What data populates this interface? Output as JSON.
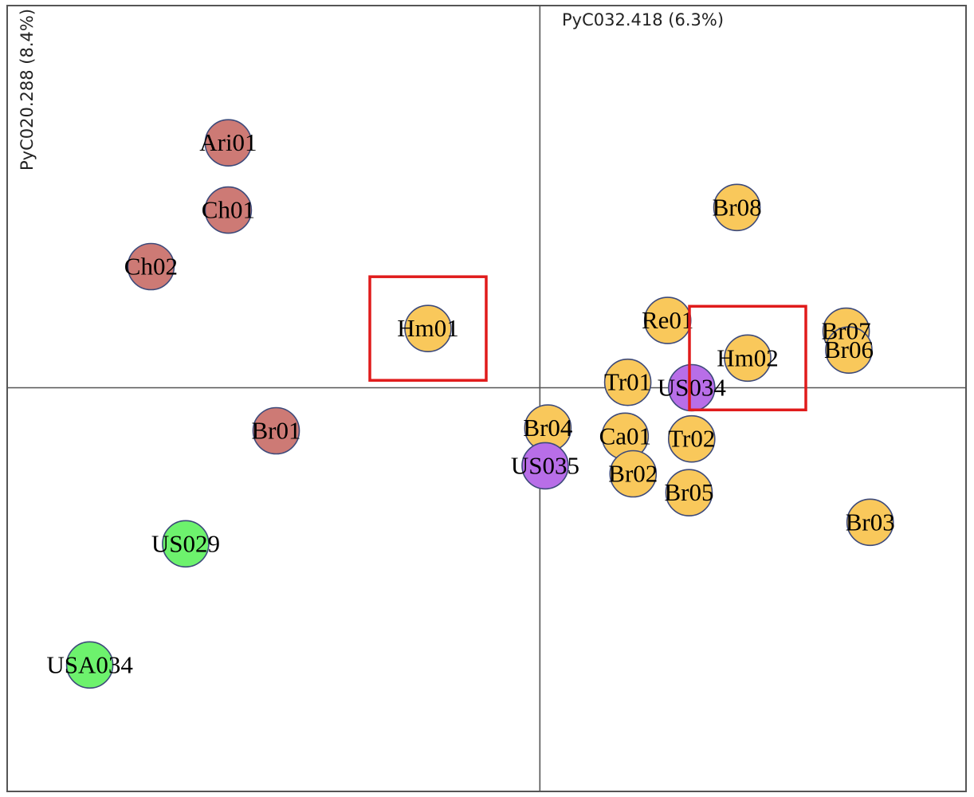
{
  "chart_data": {
    "type": "scatter",
    "title": "",
    "xlabel": "PyC032.418 (6.3%)",
    "ylabel": "PyC020.288 (8.4%)",
    "xlim": [
      -1.0,
      0.8
    ],
    "ylim": [
      -0.75,
      0.71
    ],
    "grid": false,
    "colors": {
      "red": "#cd7a75",
      "orange": "#f9c85b",
      "purple": "#b86ee8",
      "green": "#6df26d",
      "highlight": "#e01b1b"
    },
    "points": [
      {
        "label": "Ari01",
        "x": -0.585,
        "y": 0.455,
        "color": "red"
      },
      {
        "label": "Ch01",
        "x": -0.585,
        "y": 0.33,
        "color": "red"
      },
      {
        "label": "Ch02",
        "x": -0.73,
        "y": 0.225,
        "color": "red"
      },
      {
        "label": "Br01",
        "x": -0.495,
        "y": -0.08,
        "color": "red"
      },
      {
        "label": "Hm01",
        "x": -0.21,
        "y": 0.11,
        "color": "orange"
      },
      {
        "label": "Br08",
        "x": 0.37,
        "y": 0.335,
        "color": "orange"
      },
      {
        "label": "Re01",
        "x": 0.24,
        "y": 0.125,
        "color": "orange"
      },
      {
        "label": "Hm02",
        "x": 0.39,
        "y": 0.055,
        "color": "orange"
      },
      {
        "label": "Br07",
        "x": 0.575,
        "y": 0.105,
        "color": "orange"
      },
      {
        "label": "Br06",
        "x": 0.58,
        "y": 0.07,
        "color": "orange"
      },
      {
        "label": "Tr01",
        "x": 0.165,
        "y": 0.01,
        "color": "orange"
      },
      {
        "label": "US034",
        "x": 0.285,
        "y": 0.0,
        "color": "purple"
      },
      {
        "label": "Br04",
        "x": 0.015,
        "y": -0.075,
        "color": "orange"
      },
      {
        "label": "US035",
        "x": 0.01,
        "y": -0.145,
        "color": "purple"
      },
      {
        "label": "Ca01",
        "x": 0.16,
        "y": -0.09,
        "color": "orange"
      },
      {
        "label": "Tr02",
        "x": 0.285,
        "y": -0.095,
        "color": "orange"
      },
      {
        "label": "Br02",
        "x": 0.175,
        "y": -0.16,
        "color": "orange"
      },
      {
        "label": "Br05",
        "x": 0.28,
        "y": -0.195,
        "color": "orange"
      },
      {
        "label": "Br03",
        "x": 0.62,
        "y": -0.25,
        "color": "orange"
      },
      {
        "label": "US029",
        "x": -0.665,
        "y": -0.29,
        "color": "green"
      },
      {
        "label": "USA034",
        "x": -0.845,
        "y": -0.515,
        "color": "green"
      }
    ],
    "highlighted": [
      "Hm01",
      "Hm02"
    ]
  }
}
